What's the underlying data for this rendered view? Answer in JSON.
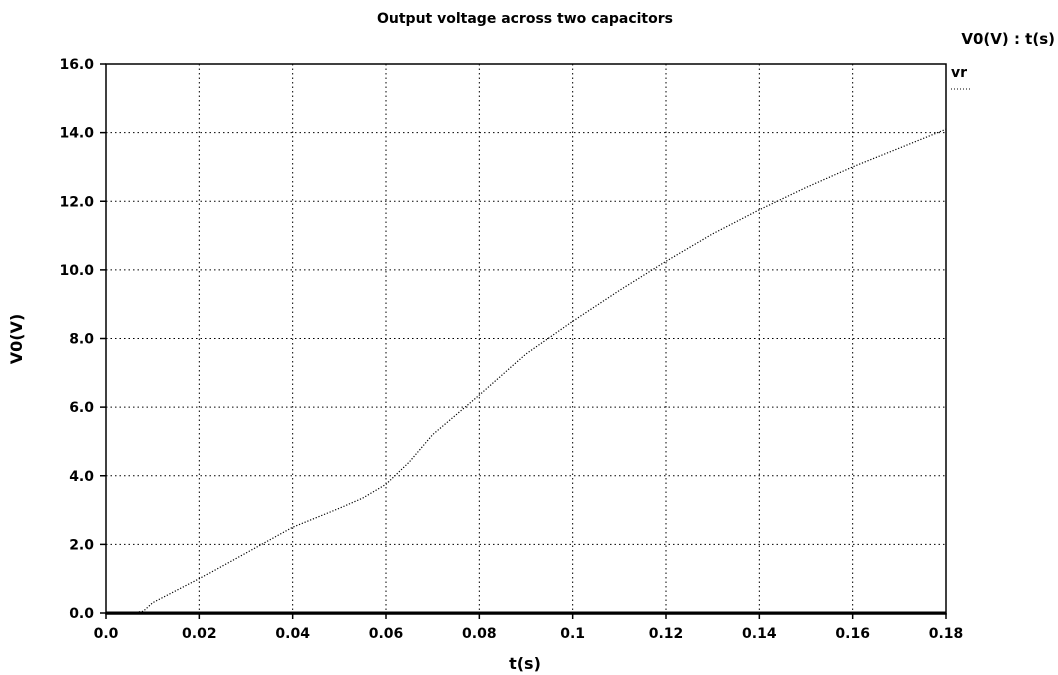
{
  "chart_data": {
    "type": "line",
    "title": "Output voltage across two capacitors",
    "xlabel": "t(s)",
    "ylabel": "V0(V)",
    "plot_label": "V0(V) : t(s)",
    "xlim": [
      0,
      0.18
    ],
    "ylim": [
      0,
      16
    ],
    "xticks": [
      "0.0",
      "0.02",
      "0.04",
      "0.06",
      "0.08",
      "0.1",
      "0.12",
      "0.14",
      "0.16",
      "0.18"
    ],
    "yticks": [
      "0.0",
      "2.0",
      "4.0",
      "6.0",
      "8.0",
      "10.0",
      "12.0",
      "14.0",
      "16.0"
    ],
    "grid": true,
    "legend_position": "top-right",
    "series": [
      {
        "name": "vr",
        "color": "#000000",
        "x": [
          0,
          0.005,
          0.008,
          0.01,
          0.02,
          0.03,
          0.04,
          0.05,
          0.055,
          0.06,
          0.065,
          0.07,
          0.08,
          0.09,
          0.1,
          0.11,
          0.12,
          0.13,
          0.14,
          0.15,
          0.16,
          0.17,
          0.18
        ],
        "y": [
          0,
          0,
          0.05,
          0.3,
          1.0,
          1.75,
          2.5,
          3.05,
          3.35,
          3.75,
          4.4,
          5.2,
          6.35,
          7.55,
          8.5,
          9.4,
          10.25,
          11.05,
          11.75,
          12.4,
          13.0,
          13.55,
          14.1
        ]
      }
    ]
  }
}
